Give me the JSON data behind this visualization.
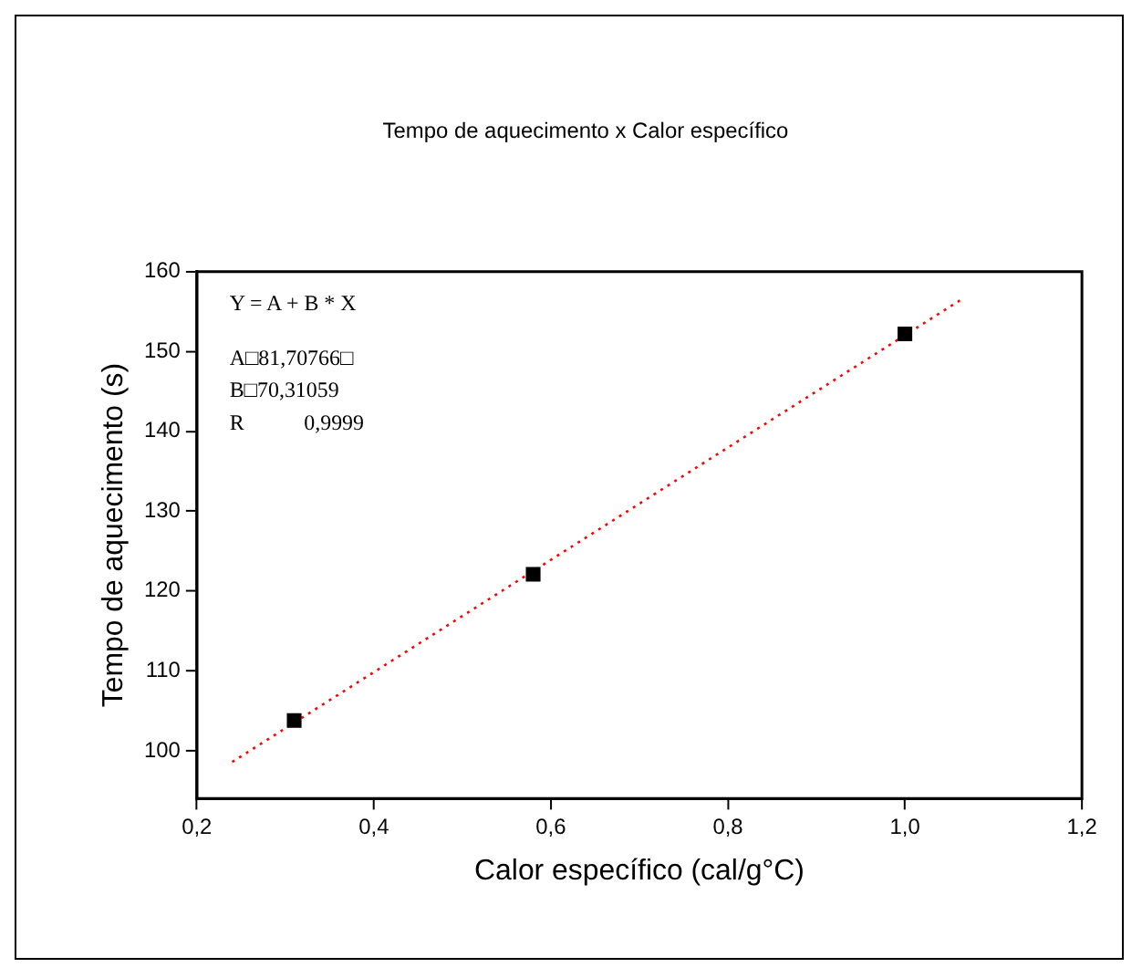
{
  "chart_data": {
    "type": "scatter",
    "title": "Tempo de aquecimento x Calor específico",
    "xlabel": "Calor específico (cal/g°C)",
    "ylabel": "Tempo de aquecimento (s)",
    "series": [
      {
        "type": "scatter",
        "color": "#000000",
        "marker": "square",
        "x": [
          0.31,
          0.58,
          1.0
        ],
        "values": [
          103.8,
          122.1,
          152.2
        ]
      },
      {
        "type": "line",
        "color": "#ff0000",
        "line_style": "dotted",
        "marker": "none",
        "x": [
          0.24,
          1.065
        ],
        "values": [
          98.6,
          156.6
        ]
      }
    ],
    "xlim": [
      0.2,
      1.2
    ],
    "xticks": [
      {
        "value": 0.2,
        "label": "0,2"
      },
      {
        "value": 0.4,
        "label": "0,4"
      },
      {
        "value": 0.6,
        "label": "0,6"
      },
      {
        "value": 0.8,
        "label": "0,8"
      },
      {
        "value": 1.0,
        "label": "1,0"
      },
      {
        "value": 1.2,
        "label": "1,2"
      }
    ],
    "ylim": [
      94,
      160
    ],
    "yticks": [
      100,
      110,
      120,
      130,
      140,
      150,
      160
    ],
    "annotations": [
      "Y = A + B * X",
      "A□81,70766□",
      "B□70,31059",
      "R           0,9999"
    ],
    "grid": false,
    "legend": false
  }
}
